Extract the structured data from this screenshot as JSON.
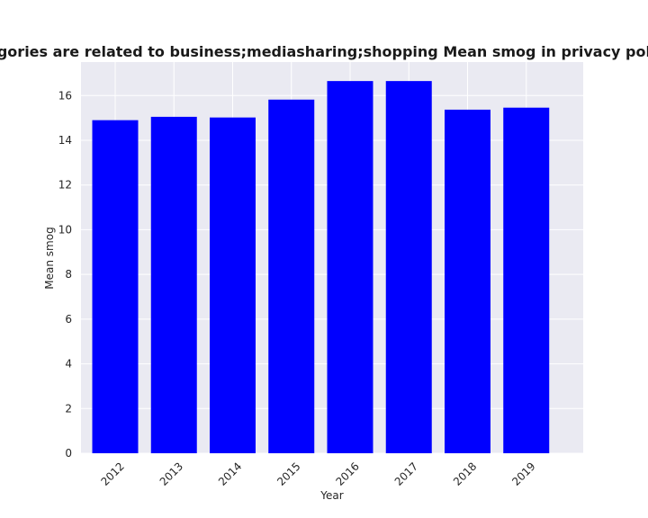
{
  "chart_data": {
    "type": "bar",
    "title": "When categories are related to business;mediasharing;shopping Mean smog in privacy policies by year",
    "xlabel": "Year",
    "ylabel": "Mean smog",
    "categories": [
      "2012",
      "2013",
      "2014",
      "2015",
      "2016",
      "2017",
      "2018",
      "2019"
    ],
    "values": [
      14.9,
      15.05,
      15.02,
      15.82,
      16.65,
      16.65,
      15.37,
      15.46
    ],
    "ylim": [
      0,
      17.5
    ],
    "yticks": [
      0,
      2,
      4,
      6,
      8,
      10,
      12,
      14,
      16
    ],
    "grid": true,
    "legend": "none",
    "bar_color": "#0000ff",
    "plot_background": "#eaeaf2"
  }
}
